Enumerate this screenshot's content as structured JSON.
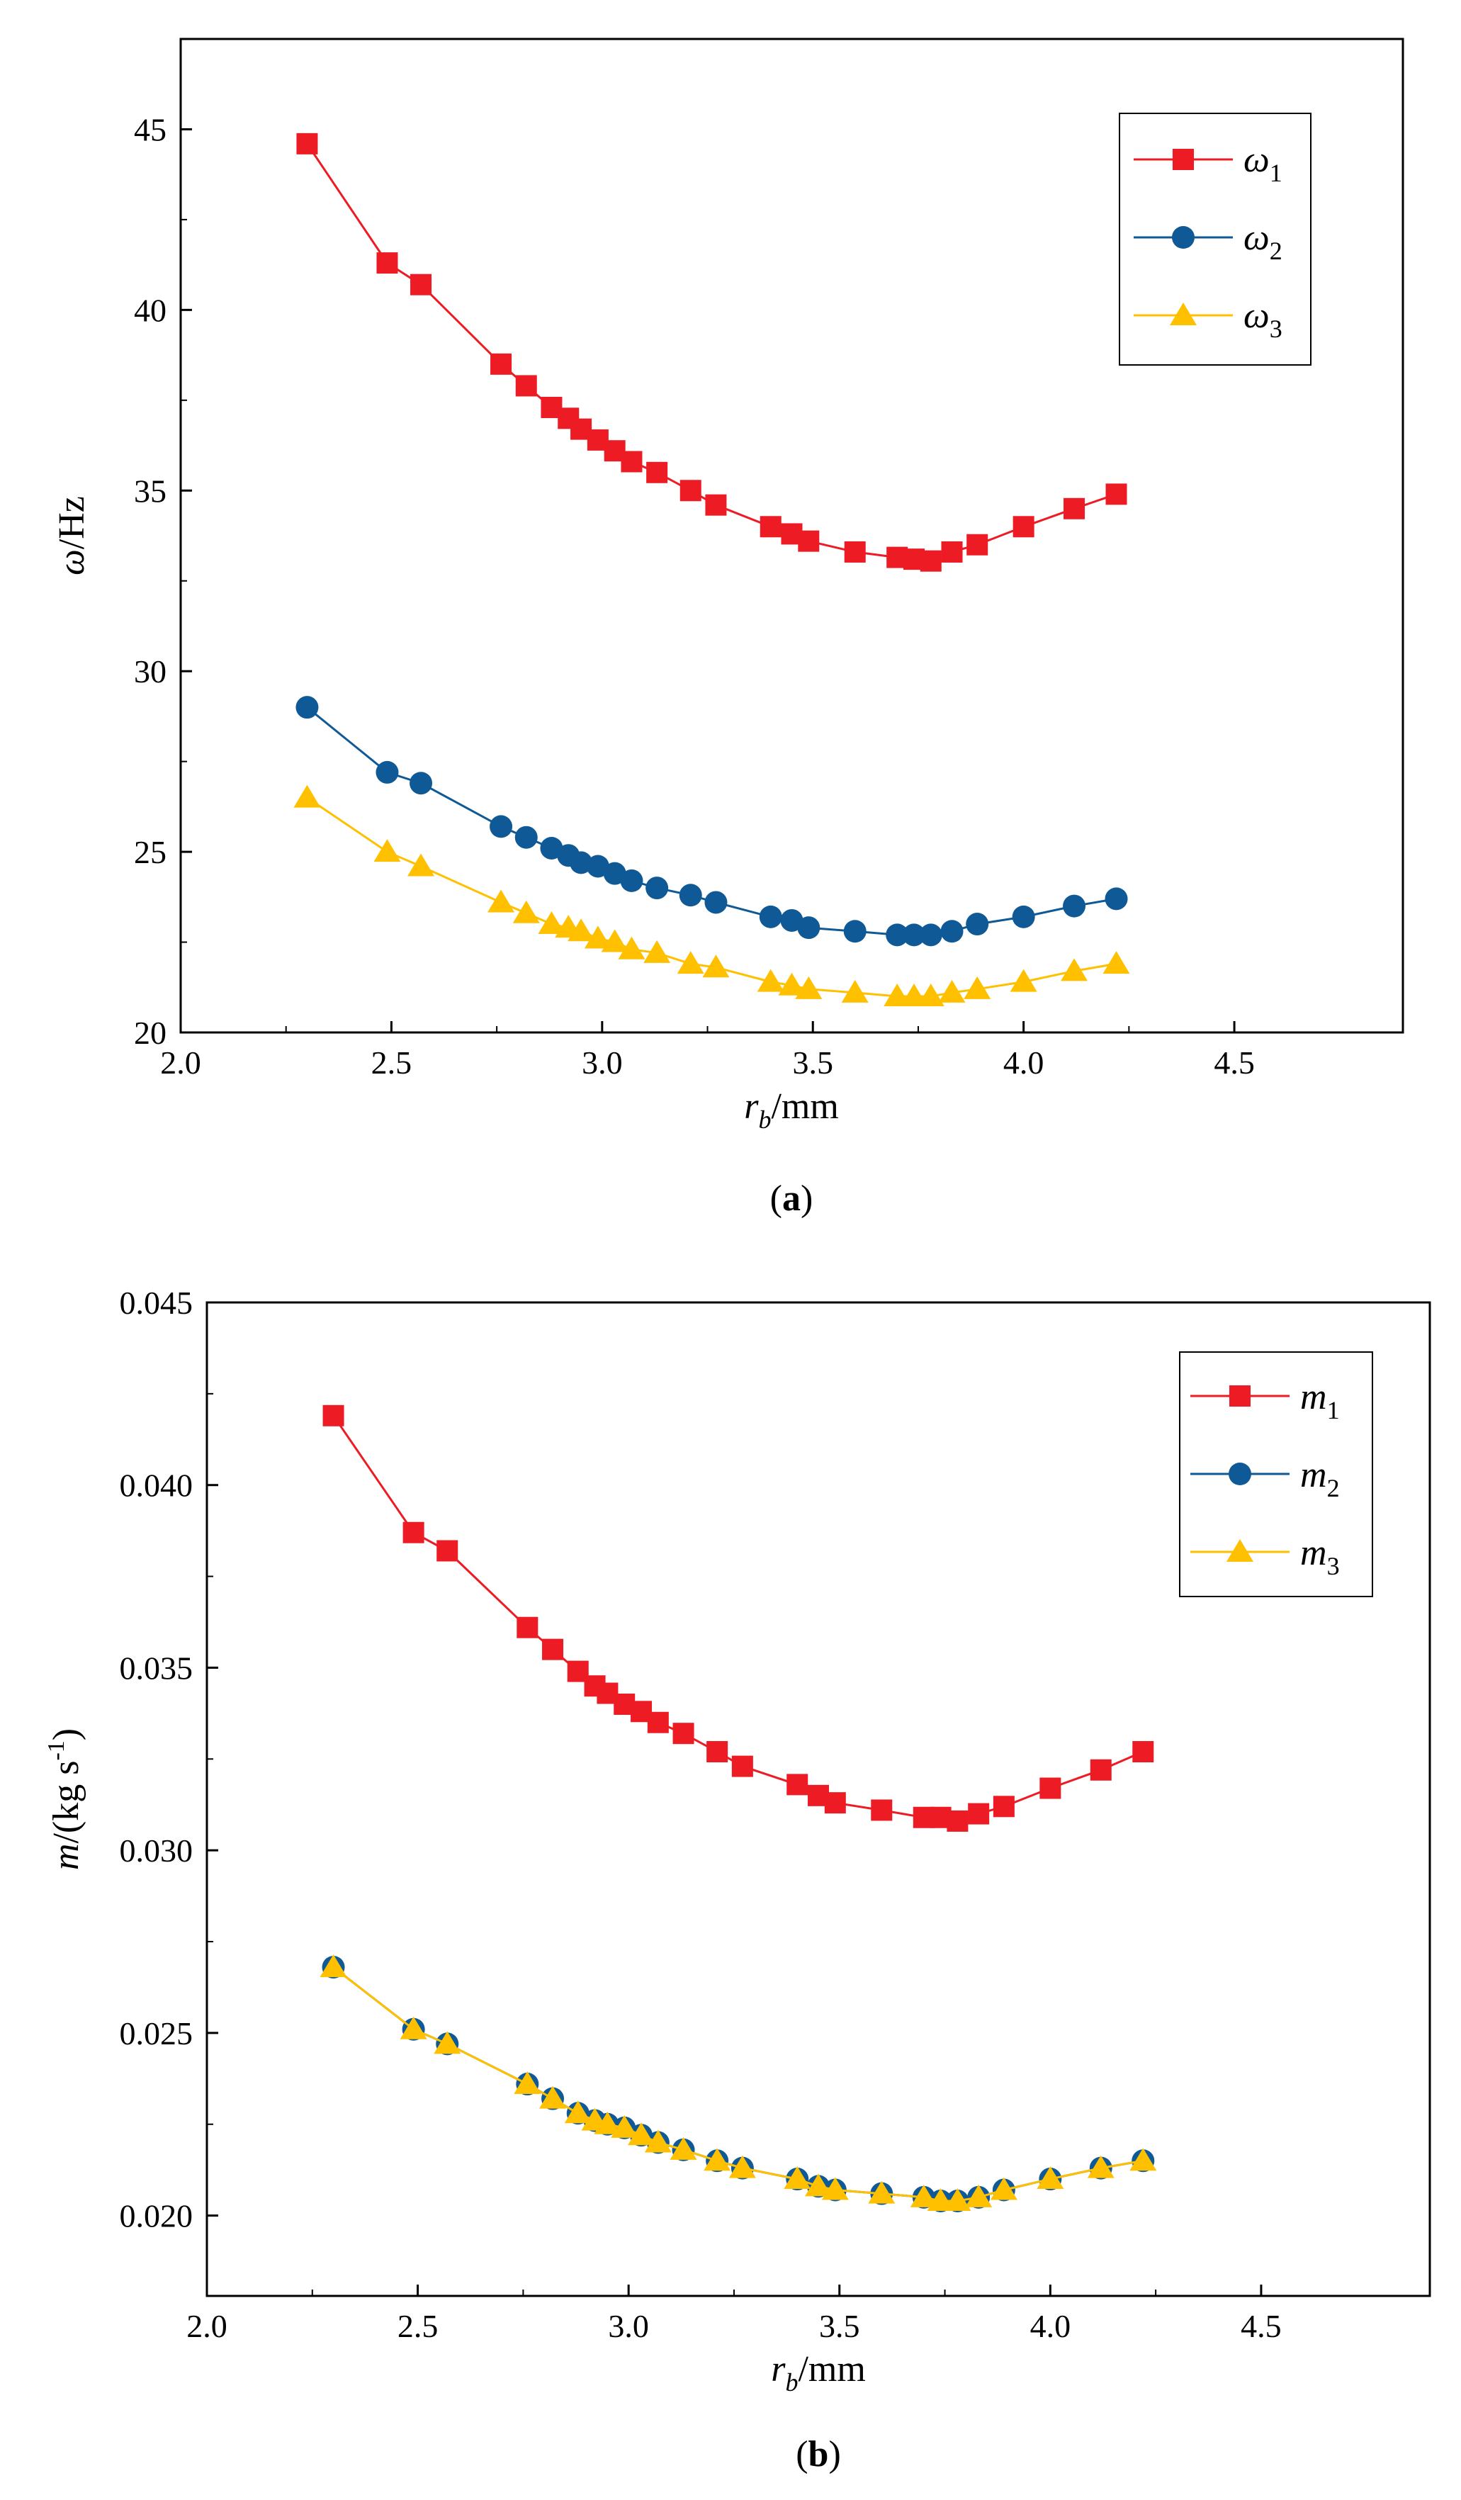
{
  "chart_data": [
    {
      "type": "line",
      "panel_label": "(a)",
      "panel_label_parts": [
        "(",
        "a",
        ")"
      ],
      "xlabel": "r_b/mm",
      "xlabel_parts": [
        "r",
        "b",
        "/mm"
      ],
      "ylabel": "ω/Hz",
      "ylabel_parts": [
        "ω",
        "/Hz"
      ],
      "xlim": [
        2.0,
        4.9
      ],
      "ylim": [
        20,
        47.5
      ],
      "xticks": [
        2.0,
        2.5,
        3.0,
        3.5,
        4.0,
        4.5
      ],
      "xtick_labels": [
        "2.0",
        "2.5",
        "3.0",
        "3.5",
        "4.0",
        "4.5"
      ],
      "yticks": [
        20,
        25,
        30,
        35,
        40,
        45
      ],
      "ytick_labels": [
        "20",
        "25",
        "30",
        "35",
        "40",
        "45"
      ],
      "grid": false,
      "legend_position": "top-right",
      "x": [
        2.3,
        2.49,
        2.57,
        2.76,
        2.82,
        2.88,
        2.92,
        2.95,
        2.99,
        3.03,
        3.07,
        3.13,
        3.21,
        3.27,
        3.4,
        3.45,
        3.49,
        3.6,
        3.7,
        3.74,
        3.78,
        3.83,
        3.89,
        4.0,
        4.12,
        4.22
      ],
      "series": [
        {
          "name": "ω1",
          "name_parts": [
            "ω",
            "1"
          ],
          "marker": "square",
          "color": "#ED1C24",
          "values": [
            44.6,
            41.3,
            40.7,
            38.5,
            37.9,
            37.3,
            37.0,
            36.7,
            36.4,
            36.1,
            35.8,
            35.5,
            35.0,
            34.6,
            34.0,
            33.8,
            33.6,
            33.3,
            33.15,
            33.1,
            33.05,
            33.3,
            33.5,
            34.0,
            34.5,
            34.9
          ]
        },
        {
          "name": "ω2",
          "name_parts": [
            "ω",
            "2"
          ],
          "marker": "circle",
          "color": "#0F5A96",
          "values": [
            29.0,
            27.2,
            26.9,
            25.7,
            25.4,
            25.1,
            24.9,
            24.7,
            24.6,
            24.4,
            24.2,
            24.0,
            23.8,
            23.6,
            23.2,
            23.1,
            22.9,
            22.8,
            22.7,
            22.7,
            22.7,
            22.8,
            23.0,
            23.2,
            23.5,
            23.7
          ]
        },
        {
          "name": "ω3",
          "name_parts": [
            "ω",
            "3"
          ],
          "marker": "triangle",
          "color": "#FFC000",
          "values": [
            26.5,
            25.0,
            24.6,
            23.6,
            23.3,
            23.0,
            22.9,
            22.8,
            22.6,
            22.5,
            22.3,
            22.2,
            21.9,
            21.8,
            21.4,
            21.3,
            21.2,
            21.1,
            21.0,
            21.0,
            21.0,
            21.1,
            21.2,
            21.4,
            21.7,
            21.9
          ]
        }
      ]
    },
    {
      "type": "line",
      "panel_label": "(b)",
      "panel_label_parts": [
        "(",
        "b",
        ")"
      ],
      "xlabel": "r_b/mm",
      "xlabel_parts": [
        "r",
        "b",
        "/mm"
      ],
      "ylabel": "m/(kg s-1)",
      "ylabel_parts": [
        "m",
        "/(kg s",
        "-1",
        ")"
      ],
      "xlim": [
        2.0,
        4.9
      ],
      "ylim": [
        0.0178,
        0.045
      ],
      "xticks": [
        2.0,
        2.5,
        3.0,
        3.5,
        4.0,
        4.5
      ],
      "xtick_labels": [
        "2.0",
        "2.5",
        "3.0",
        "3.5",
        "4.0",
        "4.5"
      ],
      "yticks": [
        0.02,
        0.025,
        0.03,
        0.035,
        0.04,
        0.045
      ],
      "ytick_labels": [
        "0.020",
        "0.025",
        "0.030",
        "0.035",
        "0.040",
        "0.045"
      ],
      "grid": false,
      "legend_position": "top-right",
      "x": [
        2.3,
        2.49,
        2.57,
        2.76,
        2.82,
        2.88,
        2.92,
        2.95,
        2.99,
        3.03,
        3.07,
        3.13,
        3.21,
        3.27,
        3.4,
        3.45,
        3.49,
        3.6,
        3.7,
        3.74,
        3.78,
        3.83,
        3.89,
        4.0,
        4.12,
        4.22
      ],
      "series": [
        {
          "name": "m1",
          "name_parts": [
            "m",
            "1"
          ],
          "marker": "square",
          "color": "#ED1C24",
          "values": [
            0.0419,
            0.0387,
            0.0382,
            0.0361,
            0.0355,
            0.0349,
            0.0345,
            0.0343,
            0.034,
            0.0338,
            0.0335,
            0.0332,
            0.0327,
            0.0323,
            0.0318,
            0.0315,
            0.0313,
            0.0311,
            0.0309,
            0.0309,
            0.0308,
            0.031,
            0.0312,
            0.0317,
            0.0322,
            0.0327
          ]
        },
        {
          "name": "m2",
          "name_parts": [
            "m",
            "2"
          ],
          "marker": "circle",
          "color": "#0F5A96",
          "values": [
            0.0268,
            0.0251,
            0.0247,
            0.0236,
            0.0232,
            0.0228,
            0.0226,
            0.0225,
            0.0224,
            0.0222,
            0.022,
            0.0218,
            0.0215,
            0.0213,
            0.021,
            0.0208,
            0.0207,
            0.0206,
            0.0205,
            0.0204,
            0.0204,
            0.0205,
            0.0207,
            0.021,
            0.0213,
            0.0215
          ]
        },
        {
          "name": "m3",
          "name_parts": [
            "m",
            "3"
          ],
          "marker": "triangle",
          "color": "#FFC000",
          "values": [
            0.0268,
            0.0251,
            0.0247,
            0.0236,
            0.0232,
            0.0228,
            0.0226,
            0.0225,
            0.0224,
            0.0222,
            0.022,
            0.0218,
            0.0215,
            0.0213,
            0.021,
            0.0208,
            0.0207,
            0.0206,
            0.0205,
            0.0204,
            0.0204,
            0.0205,
            0.0207,
            0.021,
            0.0213,
            0.0215
          ]
        }
      ]
    }
  ]
}
